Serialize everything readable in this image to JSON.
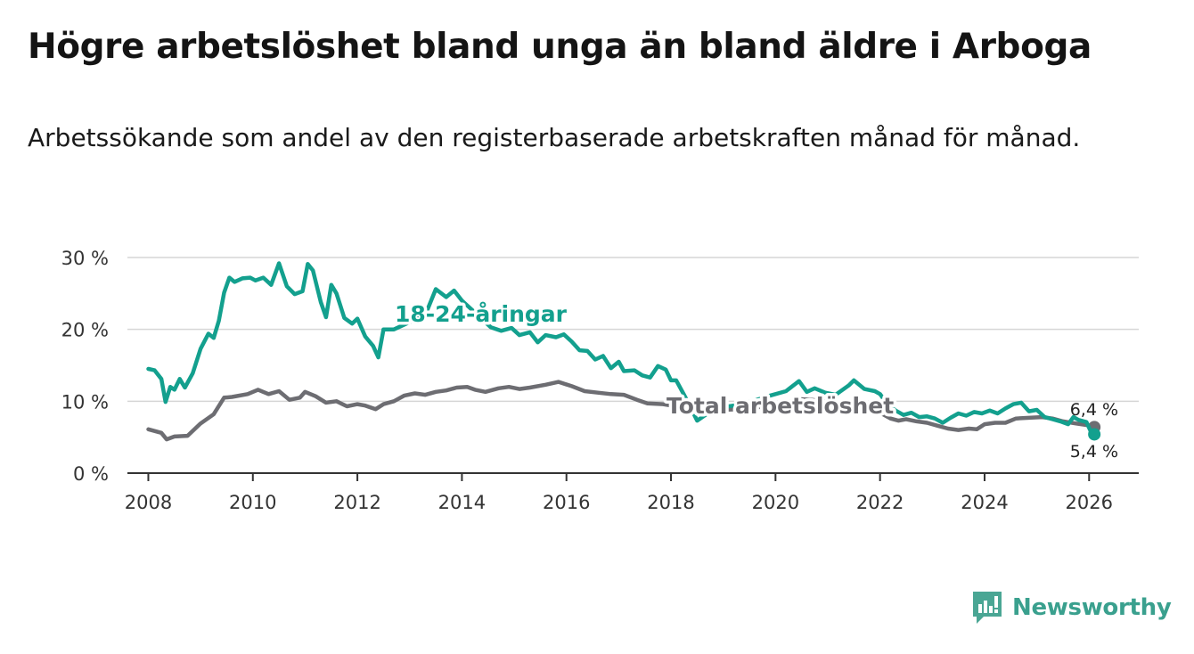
{
  "header": {
    "title": "Högre arbetslöshet bland unga än bland äldre i Arboga",
    "subtitle": "Arbetssökande som andel av den registerbaserade arbetskraften månad för månad."
  },
  "brand": {
    "name": "Newsworthy",
    "icon": "newsworthy-logo-icon",
    "color": "#3aa08e"
  },
  "chart_data": {
    "type": "line",
    "title": "Högre arbetslöshet bland unga än bland äldre i Arboga",
    "xlabel": "",
    "ylabel": "",
    "xlim": [
      2007.6,
      2026.95
    ],
    "ylim": [
      0,
      30
    ],
    "x_ticks": [
      {
        "value": 2008,
        "label": "2008"
      },
      {
        "value": 2010,
        "label": "2010"
      },
      {
        "value": 2012,
        "label": "2012"
      },
      {
        "value": 2014,
        "label": "2014"
      },
      {
        "value": 2016,
        "label": "2016"
      },
      {
        "value": 2018,
        "label": "2018"
      },
      {
        "value": 2020,
        "label": "2020"
      },
      {
        "value": 2022,
        "label": "2022"
      },
      {
        "value": 2024,
        "label": "2024"
      },
      {
        "value": 2026,
        "label": "2026"
      }
    ],
    "y_ticks": [
      {
        "value": 0,
        "label": "0 %"
      },
      {
        "value": 10,
        "label": "10 %"
      },
      {
        "value": 20,
        "label": "20 %"
      },
      {
        "value": 30,
        "label": "30 %"
      }
    ],
    "grid": true,
    "series": [
      {
        "name": "Total arbetslöshet",
        "color": "#6d6d72",
        "end_value": 6.4,
        "end_label": "6,4 %",
        "label": "Total arbetslöshet",
        "points": [
          [
            2008.0,
            6.1
          ],
          [
            2008.25,
            5.6
          ],
          [
            2008.35,
            4.7
          ],
          [
            2008.5,
            5.1
          ],
          [
            2008.75,
            5.2
          ],
          [
            2009.0,
            6.9
          ],
          [
            2009.25,
            8.2
          ],
          [
            2009.45,
            10.5
          ],
          [
            2009.6,
            10.6
          ],
          [
            2009.9,
            11.0
          ],
          [
            2010.1,
            11.6
          ],
          [
            2010.3,
            11.0
          ],
          [
            2010.5,
            11.4
          ],
          [
            2010.7,
            10.2
          ],
          [
            2010.9,
            10.5
          ],
          [
            2011.0,
            11.3
          ],
          [
            2011.2,
            10.7
          ],
          [
            2011.4,
            9.8
          ],
          [
            2011.6,
            10.0
          ],
          [
            2011.8,
            9.3
          ],
          [
            2012.0,
            9.6
          ],
          [
            2012.15,
            9.4
          ],
          [
            2012.35,
            8.9
          ],
          [
            2012.5,
            9.6
          ],
          [
            2012.7,
            10.0
          ],
          [
            2012.9,
            10.8
          ],
          [
            2013.1,
            11.1
          ],
          [
            2013.3,
            10.9
          ],
          [
            2013.5,
            11.3
          ],
          [
            2013.7,
            11.5
          ],
          [
            2013.9,
            11.9
          ],
          [
            2014.1,
            12.0
          ],
          [
            2014.25,
            11.6
          ],
          [
            2014.45,
            11.3
          ],
          [
            2014.7,
            11.8
          ],
          [
            2014.9,
            12.0
          ],
          [
            2015.1,
            11.7
          ],
          [
            2015.3,
            11.9
          ],
          [
            2015.6,
            12.3
          ],
          [
            2015.85,
            12.7
          ],
          [
            2016.1,
            12.1
          ],
          [
            2016.35,
            11.4
          ],
          [
            2016.6,
            11.2
          ],
          [
            2016.85,
            11.0
          ],
          [
            2017.1,
            10.9
          ],
          [
            2017.35,
            10.2
          ],
          [
            2017.55,
            9.7
          ],
          [
            2017.85,
            9.6
          ],
          [
            2018.1,
            9.3
          ],
          [
            2018.4,
            8.8
          ],
          [
            2018.7,
            8.7
          ],
          [
            2019.0,
            8.8
          ],
          [
            2019.3,
            8.9
          ],
          [
            2019.6,
            9.1
          ],
          [
            2019.9,
            9.4
          ],
          [
            2020.2,
            9.8
          ],
          [
            2020.45,
            10.3
          ],
          [
            2020.7,
            10.2
          ],
          [
            2020.95,
            10.0
          ],
          [
            2021.25,
            9.7
          ],
          [
            2021.5,
            9.5
          ],
          [
            2021.75,
            9.1
          ],
          [
            2022.0,
            8.4
          ],
          [
            2022.2,
            7.6
          ],
          [
            2022.35,
            7.3
          ],
          [
            2022.5,
            7.5
          ],
          [
            2022.7,
            7.2
          ],
          [
            2022.9,
            7.0
          ],
          [
            2023.1,
            6.6
          ],
          [
            2023.3,
            6.2
          ],
          [
            2023.5,
            6.0
          ],
          [
            2023.7,
            6.2
          ],
          [
            2023.85,
            6.1
          ],
          [
            2024.0,
            6.8
          ],
          [
            2024.2,
            7.0
          ],
          [
            2024.4,
            7.0
          ],
          [
            2024.6,
            7.6
          ],
          [
            2024.85,
            7.7
          ],
          [
            2025.1,
            7.8
          ],
          [
            2025.3,
            7.6
          ],
          [
            2025.5,
            7.2
          ],
          [
            2025.75,
            6.9
          ],
          [
            2025.95,
            6.7
          ],
          [
            2026.1,
            6.4
          ]
        ]
      },
      {
        "name": "18-24-åringar",
        "color": "#13a08e",
        "end_value": 5.4,
        "end_label": "5,4 %",
        "label": "18-24-åringar",
        "points": [
          [
            2008.0,
            14.5
          ],
          [
            2008.12,
            14.3
          ],
          [
            2008.25,
            13.1
          ],
          [
            2008.33,
            9.9
          ],
          [
            2008.42,
            12.0
          ],
          [
            2008.5,
            11.6
          ],
          [
            2008.6,
            13.1
          ],
          [
            2008.7,
            11.9
          ],
          [
            2008.85,
            13.9
          ],
          [
            2009.0,
            17.3
          ],
          [
            2009.15,
            19.4
          ],
          [
            2009.25,
            18.8
          ],
          [
            2009.35,
            21.2
          ],
          [
            2009.45,
            25.1
          ],
          [
            2009.55,
            27.2
          ],
          [
            2009.65,
            26.6
          ],
          [
            2009.8,
            27.1
          ],
          [
            2009.95,
            27.2
          ],
          [
            2010.05,
            26.8
          ],
          [
            2010.2,
            27.2
          ],
          [
            2010.35,
            26.2
          ],
          [
            2010.5,
            29.2
          ],
          [
            2010.65,
            26.0
          ],
          [
            2010.8,
            24.9
          ],
          [
            2010.95,
            25.3
          ],
          [
            2011.05,
            29.1
          ],
          [
            2011.15,
            28.2
          ],
          [
            2011.3,
            23.8
          ],
          [
            2011.4,
            21.7
          ],
          [
            2011.5,
            26.2
          ],
          [
            2011.6,
            25.0
          ],
          [
            2011.75,
            21.6
          ],
          [
            2011.9,
            20.8
          ],
          [
            2012.0,
            21.5
          ],
          [
            2012.15,
            19.0
          ],
          [
            2012.3,
            17.7
          ],
          [
            2012.4,
            16.1
          ],
          [
            2012.5,
            20.0
          ],
          [
            2012.7,
            20.0
          ],
          [
            2013.3,
            22.0
          ],
          [
            2013.5,
            25.6
          ],
          [
            2013.7,
            24.5
          ],
          [
            2013.85,
            25.4
          ],
          [
            2014.0,
            24.0
          ],
          [
            2014.3,
            22.0
          ],
          [
            2014.55,
            20.3
          ],
          [
            2014.75,
            19.8
          ],
          [
            2014.95,
            20.2
          ],
          [
            2015.1,
            19.2
          ],
          [
            2015.3,
            19.6
          ],
          [
            2015.45,
            18.2
          ],
          [
            2015.6,
            19.2
          ],
          [
            2015.8,
            18.9
          ],
          [
            2015.95,
            19.3
          ],
          [
            2016.1,
            18.3
          ],
          [
            2016.25,
            17.1
          ],
          [
            2016.4,
            17.0
          ],
          [
            2016.55,
            15.8
          ],
          [
            2016.7,
            16.3
          ],
          [
            2016.85,
            14.6
          ],
          [
            2017.0,
            15.5
          ],
          [
            2017.1,
            14.2
          ],
          [
            2017.3,
            14.3
          ],
          [
            2017.45,
            13.6
          ],
          [
            2017.6,
            13.3
          ],
          [
            2017.75,
            14.9
          ],
          [
            2017.9,
            14.4
          ],
          [
            2018.0,
            12.9
          ],
          [
            2018.1,
            12.9
          ],
          [
            2018.25,
            10.9
          ],
          [
            2018.35,
            9.5
          ],
          [
            2018.5,
            7.3
          ],
          [
            2018.7,
            8.3
          ],
          [
            2019.0,
            9.2
          ],
          [
            2019.3,
            9.5
          ],
          [
            2019.6,
            10.1
          ],
          [
            2019.9,
            10.8
          ],
          [
            2020.2,
            11.4
          ],
          [
            2020.45,
            12.8
          ],
          [
            2020.6,
            11.3
          ],
          [
            2020.75,
            11.8
          ],
          [
            2020.95,
            11.2
          ],
          [
            2021.15,
            10.9
          ],
          [
            2021.4,
            12.2
          ],
          [
            2021.5,
            12.9
          ],
          [
            2021.7,
            11.7
          ],
          [
            2021.9,
            11.4
          ],
          [
            2022.0,
            11.0
          ],
          [
            2022.15,
            9.5
          ],
          [
            2022.3,
            8.7
          ],
          [
            2022.45,
            8.1
          ],
          [
            2022.6,
            8.4
          ],
          [
            2022.75,
            7.8
          ],
          [
            2022.9,
            7.9
          ],
          [
            2023.05,
            7.6
          ],
          [
            2023.2,
            7.0
          ],
          [
            2023.35,
            7.7
          ],
          [
            2023.5,
            8.3
          ],
          [
            2023.65,
            8.0
          ],
          [
            2023.8,
            8.5
          ],
          [
            2023.95,
            8.3
          ],
          [
            2024.1,
            8.7
          ],
          [
            2024.25,
            8.3
          ],
          [
            2024.4,
            9.0
          ],
          [
            2024.55,
            9.6
          ],
          [
            2024.7,
            9.8
          ],
          [
            2024.85,
            8.6
          ],
          [
            2025.0,
            8.8
          ],
          [
            2025.15,
            7.8
          ],
          [
            2025.3,
            7.5
          ],
          [
            2025.45,
            7.2
          ],
          [
            2025.6,
            6.8
          ],
          [
            2025.7,
            7.8
          ],
          [
            2025.8,
            7.4
          ],
          [
            2025.95,
            7.1
          ],
          [
            2026.05,
            5.5
          ],
          [
            2026.1,
            5.4
          ]
        ]
      }
    ]
  }
}
